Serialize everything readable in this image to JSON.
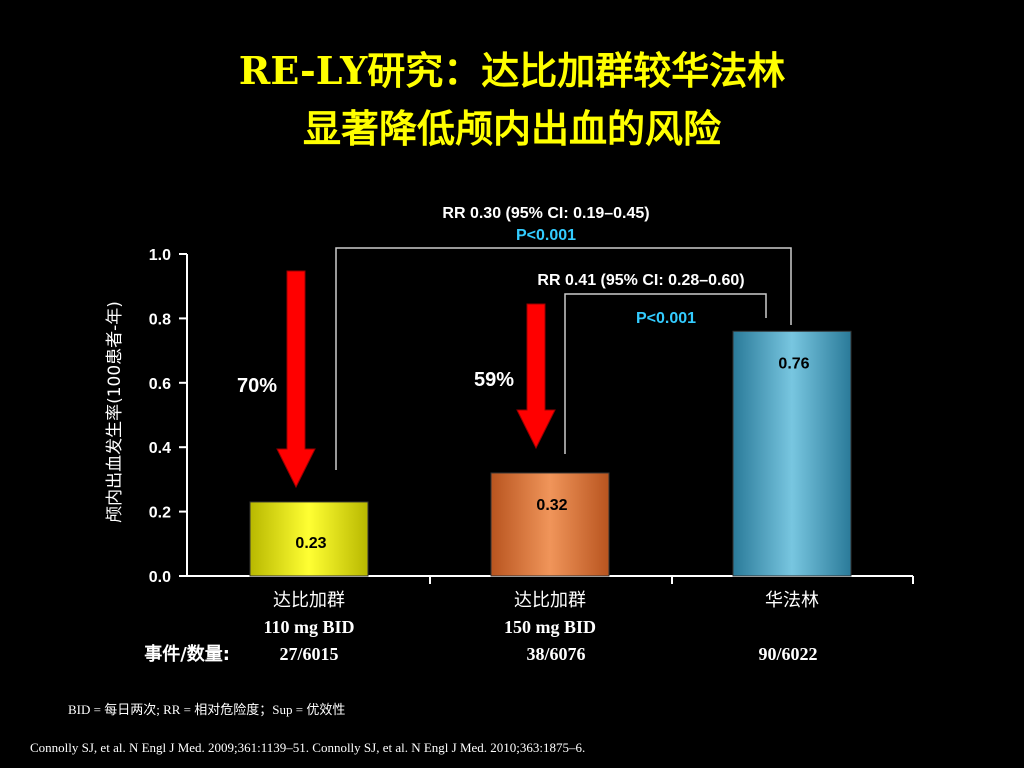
{
  "title": {
    "line1": "RE-LY研究：达比加群较华法林",
    "line2": "显著降低颅内出血的风险"
  },
  "chart_data": {
    "type": "bar",
    "ylabel": "颅内出血发生率(100患者-年)",
    "ylim": [
      0,
      1.0
    ],
    "yticks": [
      "0.0",
      "0.2",
      "0.4",
      "0.6",
      "0.8",
      "1.0"
    ],
    "categories": [
      {
        "name": "达比加群",
        "dose": "110 mg BID",
        "events": "27/6015"
      },
      {
        "name": "达比加群",
        "dose": "150 mg BID",
        "events": "38/6076"
      },
      {
        "name": "华法林",
        "dose": "",
        "events": "90/6022"
      }
    ],
    "values": [
      0.23,
      0.32,
      0.76
    ],
    "value_labels": [
      "0.23",
      "0.32",
      "0.76"
    ],
    "bar_colors": [
      "#e6e600",
      "#e07a3c",
      "#4aa3c4"
    ],
    "events_label": "事件/数量:",
    "reductions": [
      {
        "label": "70%",
        "bar": 0
      },
      {
        "label": "59%",
        "bar": 1
      }
    ],
    "comparisons": [
      {
        "rr": "RR 0.30 (95% CI: 0.19–0.45)",
        "p": "P<0.001",
        "from": 0,
        "to": 2
      },
      {
        "rr": "RR 0.41 (95% CI: 0.28–0.60)",
        "p": "P<0.001",
        "from": 1,
        "to": 2
      }
    ],
    "p_color": "#33ccff",
    "arrow_color": "#ff0000"
  },
  "footnotes": {
    "abbreviations": "BID = 每日两次; RR = 相对危险度；Sup = 优效性",
    "citation": "Connolly SJ, et al. N Engl J Med. 2009;361:1139–51. Connolly SJ, et al. N Engl J Med. 2010;363:1875–6."
  }
}
